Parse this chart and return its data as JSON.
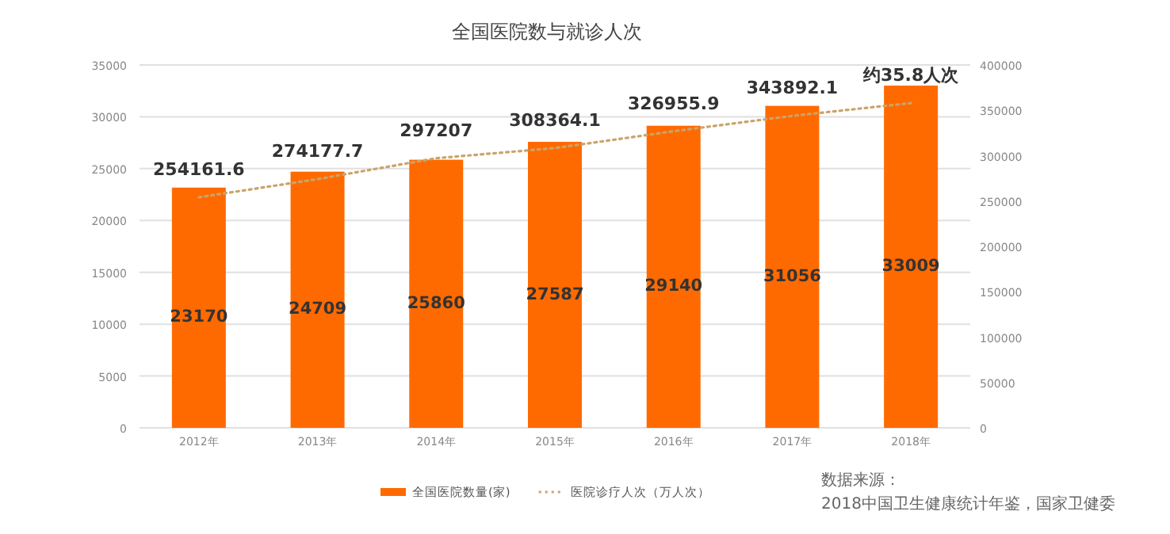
{
  "chart_data": {
    "type": "bar",
    "title": "全国医院数与就诊人次",
    "categories": [
      "2012年",
      "2013年",
      "2014年",
      "2015年",
      "2016年",
      "2017年",
      "2018年"
    ],
    "series": [
      {
        "name": "全国医院数量(家)",
        "color": "#ff6a00",
        "values": [
          23170,
          24709,
          25860,
          27587,
          29140,
          31056,
          33009
        ],
        "value_labels": [
          "23170",
          "24709",
          "25860",
          "27587",
          "29140",
          "31056",
          "33009"
        ]
      },
      {
        "name": "医院诊疗人次（万人次）",
        "type": "line",
        "axis": "y2",
        "color": "#c9a46a",
        "line_style": "dotted",
        "values": [
          254161.6,
          274177.7,
          297207,
          308364.1,
          326955.9,
          343892.1,
          358000
        ],
        "value_labels": [
          "254161.6",
          "274177.7",
          "297207",
          "308364.1",
          "326955.9",
          "343892.1",
          "约35.8人次"
        ]
      }
    ],
    "ylim": [
      0,
      35000
    ],
    "yticks": [
      0,
      5000,
      10000,
      15000,
      20000,
      25000,
      30000,
      35000
    ],
    "y2lim": [
      0,
      400000
    ],
    "y2ticks": [
      0,
      50000,
      100000,
      150000,
      200000,
      250000,
      300000,
      350000,
      400000
    ],
    "grid": "y",
    "legend": "bottom",
    "annotations": [
      "数据来源：",
      "2018中国卫生健康统计年鉴，国家卫健委"
    ]
  }
}
